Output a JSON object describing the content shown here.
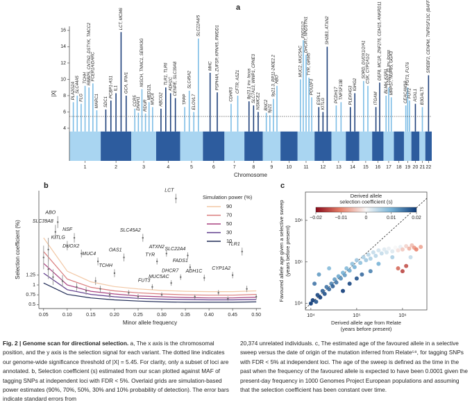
{
  "chart_data": [
    {
      "type": "manhattan",
      "panel_label": "a",
      "xlabel": "Chromosome",
      "ylabel": "|X|",
      "categories": [
        "1",
        "2",
        "3",
        "4",
        "5",
        "6",
        "7",
        "8",
        "9",
        "10",
        "11",
        "12",
        "13",
        "14",
        "15",
        "16",
        "17",
        "18",
        "19",
        "20",
        "21",
        "22"
      ],
      "ylim": [
        0,
        16.5
      ],
      "yticks": [
        4,
        6,
        8,
        10,
        12,
        14,
        16
      ],
      "threshold": 5.45,
      "colors": [
        "#7dbde6",
        "#1d3f7a"
      ],
      "peaks": [
        {
          "label": "PLA2G2A",
          "chromosome": "1",
          "value": 7.2
        },
        {
          "label": "SLC44A5",
          "chromosome": "1",
          "value": 8.0
        },
        {
          "label": "FLG",
          "chromosome": "1",
          "value": 7.0
        },
        {
          "label": "TCHH",
          "chromosome": "1",
          "value": 9.2
        },
        {
          "label": "RBBP5, CNTN2, DSTYK, TMCC2",
          "chromosome": "1",
          "value": 9.0
        },
        {
          "label": "FCER1A/DARC",
          "chromosome": "1",
          "value": 9.5
        },
        {
          "label": "MARC1",
          "chromosome": "1",
          "value": 6.2
        },
        {
          "label": "SDC1",
          "chromosome": "2",
          "value": 6.3
        },
        {
          "label": "PCBP1-AS1",
          "chromosome": "2",
          "value": 7.4
        },
        {
          "label": "IL1",
          "chromosome": "2",
          "value": 8.3
        },
        {
          "label": "LCT, MCM6",
          "chromosome": "2",
          "value": 15.8
        },
        {
          "label": "GCA, IFIH1",
          "chromosome": "2",
          "value": 8.0
        },
        {
          "label": "CCR5",
          "chromosome": "3",
          "value": 6.4
        },
        {
          "label": "DNAH1",
          "chromosome": "3",
          "value": 5.9
        },
        {
          "label": "NISCH, TNNC1, SEMA3G",
          "chromosome": "3",
          "value": 8.8
        },
        {
          "label": "RDUR",
          "chromosome": "3",
          "value": 5.8
        },
        {
          "label": "MED12L",
          "chromosome": "3",
          "value": 7.2
        },
        {
          "label": "MUC4",
          "chromosome": "3",
          "value": 6.6
        },
        {
          "label": "ABCG2",
          "chromosome": "4",
          "value": 6.4
        },
        {
          "label": "TLR1, TLR6",
          "chromosome": "4",
          "value": 9.0
        },
        {
          "label": "ADH1C",
          "chromosome": "4",
          "value": 8.3
        },
        {
          "label": "CENPE, SLC39A8",
          "chromosome": "4",
          "value": 7.7
        },
        {
          "label": "TPPP",
          "chromosome": "5",
          "value": 6.6
        },
        {
          "label": "SLC45A2",
          "chromosome": "5",
          "value": 8.6
        },
        {
          "label": "ELOVL7",
          "chromosome": "5",
          "value": 6.0
        },
        {
          "label": "SLC22A4/5",
          "chromosome": "5",
          "value": 15.0
        },
        {
          "label": "MHC",
          "chromosome": "6",
          "value": 10.8
        },
        {
          "label": "PSPH4A, ZUFSP, KPNA5, RWDD1",
          "chromosome": "6",
          "value": 8.4
        },
        {
          "label": "CDHR3",
          "chromosome": "7",
          "value": 7.0
        },
        {
          "label": "CFTR, ASZ1",
          "chromosome": "7",
          "value": 8.0
        },
        {
          "label": "8p23.1 inv. locus",
          "chromosome": "8",
          "value": 7.3
        },
        {
          "label": "SLC7A13, WWP1, CPNE3",
          "chromosome": "8",
          "value": 6.8
        },
        {
          "label": "NSMCE2",
          "chromosome": "8",
          "value": 6.0
        },
        {
          "label": "BNC2",
          "chromosome": "9",
          "value": 5.9
        },
        {
          "label": "9p21",
          "chromosome": "9",
          "value": 5.6
        },
        {
          "label": "9p21.3, RP11-240E2.2",
          "chromosome": "9",
          "value": 7.6
        },
        {
          "label": "ABO",
          "chromosome": "9",
          "value": 9.2
        },
        {
          "label": "MUC2, MUC5AC",
          "chromosome": "11",
          "value": 10.0
        },
        {
          "label": "FADS1/2",
          "chromosome": "11",
          "value": 14.8
        },
        {
          "label": "DHCR7, NADSYN1",
          "chromosome": "11",
          "value": 13.0
        },
        {
          "label": "TYR, GRM5",
          "chromosome": "11",
          "value": 10.2
        },
        {
          "label": "POU2F3",
          "chromosome": "11",
          "value": 7.8
        },
        {
          "label": "ESPL1",
          "chromosome": "12",
          "value": 6.6
        },
        {
          "label": "KITLG",
          "chromosome": "12",
          "value": 6.0
        },
        {
          "label": "SH2B3, ATXN2",
          "chromosome": "12",
          "value": 14.0
        },
        {
          "label": "PCDH17",
          "chromosome": "13",
          "value": 6.8
        },
        {
          "label": "TNFSF13B",
          "chromosome": "13",
          "value": 7.2
        },
        {
          "label": "PLEKHG3",
          "chromosome": "14",
          "value": 6.6
        },
        {
          "label": "IGHG2",
          "chromosome": "14",
          "value": 8.3
        },
        {
          "label": "SORD, DUOX1/2/A1",
          "chromosome": "15",
          "value": 9.8
        },
        {
          "label": "CSK, CYP1A1/2",
          "chromosome": "15",
          "value": 9.2
        },
        {
          "label": "ITGAM",
          "chromosome": "16",
          "value": 6.6
        },
        {
          "label": "DEF8, MC1R, ZNF276, CDH15, ANKRD11",
          "chromosome": "16",
          "value": 9.6
        },
        {
          "label": "BLMH, KSR1",
          "chromosome": "17",
          "value": 8.0
        },
        {
          "label": "17q21.31 inv. locus",
          "chromosome": "17",
          "value": 9.0
        },
        {
          "label": "MRPS7, NUP85, GGA3",
          "chromosome": "17",
          "value": 7.8
        },
        {
          "label": "CEACAM19",
          "chromosome": "19",
          "value": 6.8
        },
        {
          "label": "FUT3, FUT6",
          "chromosome": "19",
          "value": 9.0
        },
        {
          "label": "FUT2",
          "chromosome": "19",
          "value": 7.4
        },
        {
          "label": "ASXL1",
          "chromosome": "20",
          "value": 7.0
        },
        {
          "label": "B3GALT5",
          "chromosome": "21",
          "value": 6.6
        },
        {
          "label": "SREBF2, CENPM, TNFRSF13C (BAFF-R)",
          "chromosome": "22",
          "value": 10.5
        }
      ]
    },
    {
      "type": "errorbar",
      "panel_label": "b",
      "xlabel": "Minor allele frequency",
      "ylabel": "Selection coefficient (%)",
      "xlim": [
        0.04,
        0.51
      ],
      "ylim": [
        0.4,
        3.4
      ],
      "xticks": [
        0.05,
        {
          "value": 0.1,
          "label": "0.10"
        },
        0.15,
        {
          "value": 0.2,
          "label": "0.20"
        },
        0.25,
        {
          "value": 0.3,
          "label": "0.30"
        },
        0.35,
        {
          "value": 0.4,
          "label": "0.40"
        },
        0.45,
        {
          "value": 0.5,
          "label": "0.50"
        }
      ],
      "yticks": [
        0.5,
        0.75,
        1,
        1.25
      ],
      "legend_title": "Simulation power (%)",
      "x": [
        0.05,
        0.1,
        0.15,
        0.2,
        0.25,
        0.3,
        0.35,
        0.4,
        0.45,
        0.5
      ],
      "series": [
        {
          "name": "90",
          "color": "#f2c7a4",
          "values": [
            2.2,
            1.35,
            1.08,
            0.96,
            0.9,
            0.86,
            0.84,
            0.83,
            0.83,
            0.85
          ]
        },
        {
          "name": "70",
          "color": "#d97a7a",
          "values": [
            1.85,
            1.15,
            0.94,
            0.85,
            0.8,
            0.77,
            0.75,
            0.74,
            0.74,
            0.76
          ]
        },
        {
          "name": "50",
          "color": "#a8407e",
          "values": [
            1.55,
            1.0,
            0.84,
            0.77,
            0.72,
            0.7,
            0.68,
            0.67,
            0.67,
            0.69
          ]
        },
        {
          "name": "30",
          "color": "#5e3a8a",
          "values": [
            1.3,
            0.88,
            0.76,
            0.7,
            0.66,
            0.64,
            0.63,
            0.62,
            0.62,
            0.63
          ]
        },
        {
          "name": "10",
          "color": "#1f2a55",
          "values": [
            1.05,
            0.76,
            0.67,
            0.62,
            0.59,
            0.57,
            0.56,
            0.56,
            0.56,
            0.57
          ]
        }
      ],
      "points": {
        "x": [
          0.33,
          0.08,
          0.075,
          0.115,
          0.1,
          0.13,
          0.165,
          0.2,
          0.22,
          0.26,
          0.29,
          0.31,
          0.355,
          0.36,
          0.34,
          0.32,
          0.28,
          0.39,
          0.47,
          0.45,
          0.05,
          0.06,
          0.07,
          0.09,
          0.12,
          0.14,
          0.17,
          0.19,
          0.23,
          0.25,
          0.3,
          0.37,
          0.42,
          0.44,
          0.48,
          0.5,
          0.06,
          0.16
        ],
        "values": [
          3.2,
          2.6,
          2.35,
          2.2,
          2.0,
          1.8,
          1.6,
          1.3,
          1.7,
          2.2,
          1.6,
          1.8,
          1.75,
          1.45,
          1.2,
          1.05,
          0.95,
          1.18,
          1.85,
          1.25,
          1.7,
          1.4,
          1.2,
          1.1,
          0.95,
          0.85,
          0.9,
          0.75,
          0.8,
          0.7,
          0.75,
          0.7,
          0.8,
          0.65,
          0.9,
          0.7,
          1.9,
          1.1
        ],
        "errors": [
          0.12,
          0.15,
          0.18,
          0.12,
          0.12,
          0.1,
          0.1,
          0.1,
          0.1,
          0.1,
          0.08,
          0.08,
          0.08,
          0.08,
          0.07,
          0.07,
          0.07,
          0.08,
          0.1,
          0.08,
          0.3,
          0.25,
          0.2,
          0.15,
          0.1,
          0.1,
          0.08,
          0.08,
          0.07,
          0.07,
          0.06,
          0.06,
          0.07,
          0.06,
          0.08,
          0.07,
          0.3,
          0.1
        ],
        "labels": [
          "LCT",
          "ABO",
          "SLC39A8",
          "NSF",
          "KITLG",
          "DUOX2",
          "MUC4",
          "TCHH",
          "OAS1",
          "SLC45A2",
          "TYR",
          "ATXN2",
          "SLC22A4",
          "FADS1",
          "DHCR7",
          "MUC5AC",
          "FUT3",
          "ADH1C",
          "TLR1",
          "CYP1A2",
          null,
          null,
          null,
          null,
          null,
          null,
          null,
          null,
          null,
          null,
          null,
          null,
          null,
          null,
          null,
          null,
          null,
          null
        ]
      }
    },
    {
      "type": "scatter",
      "panel_label": "c",
      "xlabel": [
        "Derived allele age from Relate",
        "(years before present)"
      ],
      "ylabel": [
        "Favoured allele age given a selective sweep",
        "(years before present)"
      ],
      "log_x": true,
      "log_y": true,
      "xlim": [
        7600,
        3400000
      ],
      "ylim": [
        7000,
        4800000
      ],
      "xticks": [
        {
          "value": 10000,
          "label": "10⁴"
        },
        {
          "value": 100000,
          "label": "10⁵"
        },
        {
          "value": 1000000,
          "label": "10⁶"
        }
      ],
      "yticks": [
        {
          "value": 10000,
          "label": "10⁴"
        },
        {
          "value": 100000,
          "label": "10⁵"
        },
        {
          "value": 1000000,
          "label": "10⁶"
        }
      ],
      "colorbar": {
        "title": [
          "Derived allele",
          "selection coefficient (s)"
        ],
        "clim": [
          -0.02,
          0.02
        ],
        "ticks": [
          {
            "value": -0.02,
            "label": "−0.02"
          },
          {
            "value": -0.01,
            "label": "−0.01"
          },
          0,
          0.01,
          0.02
        ],
        "colormap": [
          "#8b0a1a",
          "#e8826b",
          "#f7f7f7",
          "#78b3d6",
          "#0d3a78"
        ]
      },
      "x": [
        10000,
        11000,
        13000,
        14000,
        16000,
        18000,
        20000,
        22000,
        25000,
        28000,
        30000,
        33000,
        36000,
        40000,
        45000,
        50000,
        55000,
        60000,
        70000,
        80000,
        90000,
        100000,
        120000,
        140000,
        160000,
        180000,
        200000,
        230000,
        260000,
        300000,
        350000,
        400000,
        450000,
        500000,
        600000,
        700000,
        800000,
        900000,
        1000000,
        1200000,
        1400000,
        1600000,
        1800000,
        2000000,
        800000,
        1000000,
        1200000,
        15000,
        12000,
        25000,
        300000,
        200000,
        130000,
        600000,
        1500000,
        2500000,
        100000,
        50000,
        70000
      ],
      "values": [
        10000,
        12000,
        11000,
        16000,
        14000,
        20000,
        17000,
        25000,
        22000,
        30000,
        26000,
        38000,
        32000,
        45000,
        40000,
        55000,
        48000,
        70000,
        62000,
        90000,
        75000,
        110000,
        95000,
        130000,
        110000,
        150000,
        120000,
        170000,
        140000,
        190000,
        160000,
        200000,
        170000,
        210000,
        180000,
        220000,
        190000,
        230000,
        200000,
        240000,
        210000,
        250000,
        220000,
        200000,
        70000,
        60000,
        80000,
        50000,
        30000,
        70000,
        90000,
        60000,
        50000,
        130000,
        130000,
        230000,
        40000,
        20000,
        30000
      ],
      "s": [
        0.02,
        0.02,
        0.018,
        0.019,
        0.02,
        0.017,
        0.018,
        0.015,
        0.016,
        0.014,
        0.017,
        0.012,
        0.015,
        0.011,
        0.013,
        0.01,
        0.012,
        0.009,
        0.011,
        0.008,
        0.01,
        0.007,
        0.008,
        0.006,
        0.007,
        0.005,
        0.006,
        0.004,
        0.005,
        0.003,
        0.004,
        0.002,
        0.003,
        0.001,
        0.002,
        0,
        -0.002,
        0.001,
        -0.004,
        -0.003,
        -0.006,
        -0.005,
        -0.008,
        -0.01,
        -0.012,
        -0.015,
        -0.014,
        0.012,
        0.015,
        0.009,
        0.01,
        0.014,
        0.016,
        0.006,
        0.004,
        -0.007,
        0.018,
        0.02,
        0.019
      ]
    }
  ],
  "caption": {
    "label": "Fig. 2 | Genome scan for directional selection.",
    "left": "a, The x axis is the chromosomal position, and the y axis is the selection signal for each variant. The dotted line indicates our genome-wide significance threshold of |X| = 5.45. For clarity, only a subset of loci are annotated. b, Selection coefficient (s) estimated from our scan plotted against MAF of tagging SNPs at independent loci with FDR < 5%. Overlaid grids are simulation-based power estimates (90%, 70%, 50%, 30% and 10% probability of detection). The error bars indicate standard errors from",
    "right": "20,374 unrelated individuals. c, The estimated age of the favoured allele in a selective sweep versus the date of origin of the mutation inferred from Relate⁵⁸, for tagging SNPs with FDR < 5% at independent loci. The age of the sweep is defined as the time in the past when the frequency of the favoured allele is expected to have been 0.0001 given the present-day frequency in 1000 Genomes Project European populations and assuming that the selection coefficient has been constant over time."
  }
}
